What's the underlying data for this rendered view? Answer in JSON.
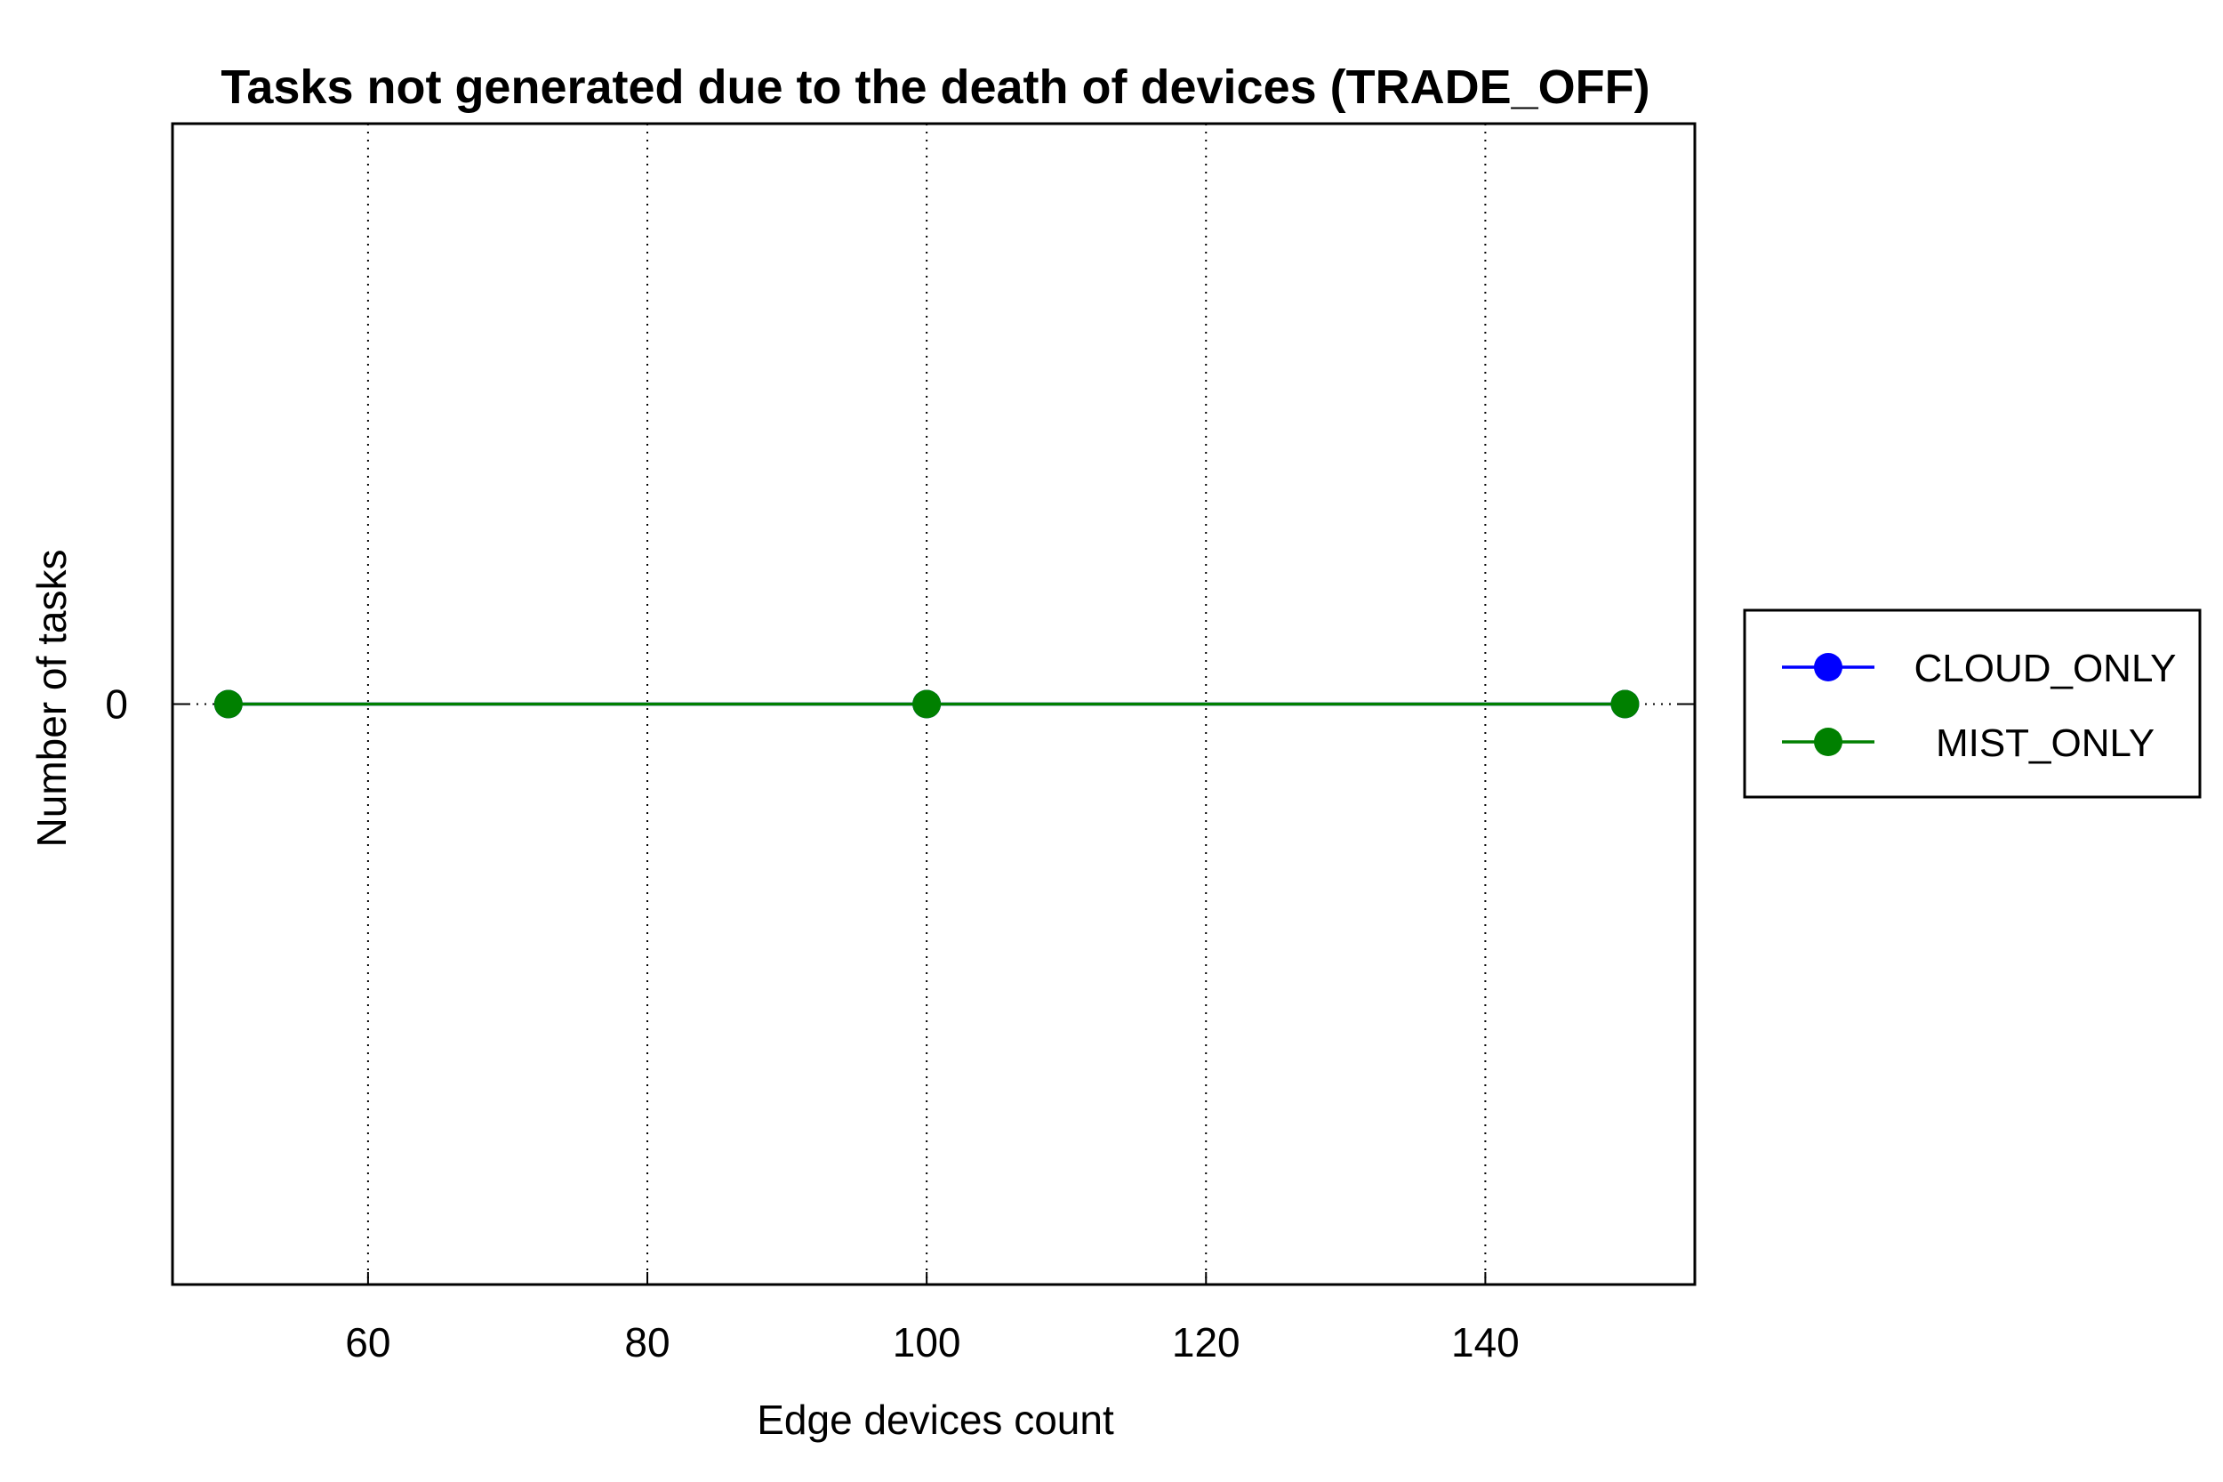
{
  "chart_data": {
    "type": "line",
    "title": "Tasks not generated due to the death of devices (TRADE_OFF)",
    "xlabel": "Edge devices count",
    "ylabel": "Number of tasks",
    "x": [
      50,
      100,
      150
    ],
    "xlim": [
      46,
      155
    ],
    "ylim": [
      -1,
      1
    ],
    "xticks": [
      60,
      80,
      100,
      120,
      140
    ],
    "yticks": [
      0
    ],
    "grid": "vertical dotted",
    "legend_position": "right",
    "series": [
      {
        "name": "CLOUD_ONLY",
        "color": "#0000ff",
        "values": [
          0,
          0,
          0
        ],
        "marker": "circle"
      },
      {
        "name": "MIST_ONLY",
        "color": "#008000",
        "values": [
          0,
          0,
          0
        ],
        "marker": "circle"
      }
    ]
  }
}
